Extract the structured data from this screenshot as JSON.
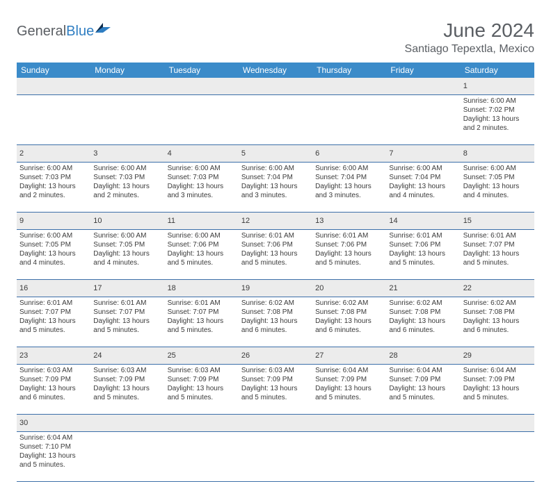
{
  "logo": {
    "general": "General",
    "blue": "Blue"
  },
  "title": "June 2024",
  "location": "Santiago Tepextla, Mexico",
  "colors": {
    "header_bg": "#3b8bc9",
    "header_text": "#ffffff",
    "stripe_bg": "#ececec",
    "rule": "#3b6ea8",
    "text": "#3a3a3a",
    "title_text": "#5a5e63",
    "logo_accent": "#2f7ec2"
  },
  "weekdays": [
    "Sunday",
    "Monday",
    "Tuesday",
    "Wednesday",
    "Thursday",
    "Friday",
    "Saturday"
  ],
  "weeks": [
    [
      null,
      null,
      null,
      null,
      null,
      null,
      {
        "n": "1",
        "sr": "Sunrise: 6:00 AM",
        "ss": "Sunset: 7:02 PM",
        "d1": "Daylight: 13 hours",
        "d2": "and 2 minutes."
      }
    ],
    [
      {
        "n": "2",
        "sr": "Sunrise: 6:00 AM",
        "ss": "Sunset: 7:03 PM",
        "d1": "Daylight: 13 hours",
        "d2": "and 2 minutes."
      },
      {
        "n": "3",
        "sr": "Sunrise: 6:00 AM",
        "ss": "Sunset: 7:03 PM",
        "d1": "Daylight: 13 hours",
        "d2": "and 2 minutes."
      },
      {
        "n": "4",
        "sr": "Sunrise: 6:00 AM",
        "ss": "Sunset: 7:03 PM",
        "d1": "Daylight: 13 hours",
        "d2": "and 3 minutes."
      },
      {
        "n": "5",
        "sr": "Sunrise: 6:00 AM",
        "ss": "Sunset: 7:04 PM",
        "d1": "Daylight: 13 hours",
        "d2": "and 3 minutes."
      },
      {
        "n": "6",
        "sr": "Sunrise: 6:00 AM",
        "ss": "Sunset: 7:04 PM",
        "d1": "Daylight: 13 hours",
        "d2": "and 3 minutes."
      },
      {
        "n": "7",
        "sr": "Sunrise: 6:00 AM",
        "ss": "Sunset: 7:04 PM",
        "d1": "Daylight: 13 hours",
        "d2": "and 4 minutes."
      },
      {
        "n": "8",
        "sr": "Sunrise: 6:00 AM",
        "ss": "Sunset: 7:05 PM",
        "d1": "Daylight: 13 hours",
        "d2": "and 4 minutes."
      }
    ],
    [
      {
        "n": "9",
        "sr": "Sunrise: 6:00 AM",
        "ss": "Sunset: 7:05 PM",
        "d1": "Daylight: 13 hours",
        "d2": "and 4 minutes."
      },
      {
        "n": "10",
        "sr": "Sunrise: 6:00 AM",
        "ss": "Sunset: 7:05 PM",
        "d1": "Daylight: 13 hours",
        "d2": "and 4 minutes."
      },
      {
        "n": "11",
        "sr": "Sunrise: 6:00 AM",
        "ss": "Sunset: 7:06 PM",
        "d1": "Daylight: 13 hours",
        "d2": "and 5 minutes."
      },
      {
        "n": "12",
        "sr": "Sunrise: 6:01 AM",
        "ss": "Sunset: 7:06 PM",
        "d1": "Daylight: 13 hours",
        "d2": "and 5 minutes."
      },
      {
        "n": "13",
        "sr": "Sunrise: 6:01 AM",
        "ss": "Sunset: 7:06 PM",
        "d1": "Daylight: 13 hours",
        "d2": "and 5 minutes."
      },
      {
        "n": "14",
        "sr": "Sunrise: 6:01 AM",
        "ss": "Sunset: 7:06 PM",
        "d1": "Daylight: 13 hours",
        "d2": "and 5 minutes."
      },
      {
        "n": "15",
        "sr": "Sunrise: 6:01 AM",
        "ss": "Sunset: 7:07 PM",
        "d1": "Daylight: 13 hours",
        "d2": "and 5 minutes."
      }
    ],
    [
      {
        "n": "16",
        "sr": "Sunrise: 6:01 AM",
        "ss": "Sunset: 7:07 PM",
        "d1": "Daylight: 13 hours",
        "d2": "and 5 minutes."
      },
      {
        "n": "17",
        "sr": "Sunrise: 6:01 AM",
        "ss": "Sunset: 7:07 PM",
        "d1": "Daylight: 13 hours",
        "d2": "and 5 minutes."
      },
      {
        "n": "18",
        "sr": "Sunrise: 6:01 AM",
        "ss": "Sunset: 7:07 PM",
        "d1": "Daylight: 13 hours",
        "d2": "and 5 minutes."
      },
      {
        "n": "19",
        "sr": "Sunrise: 6:02 AM",
        "ss": "Sunset: 7:08 PM",
        "d1": "Daylight: 13 hours",
        "d2": "and 6 minutes."
      },
      {
        "n": "20",
        "sr": "Sunrise: 6:02 AM",
        "ss": "Sunset: 7:08 PM",
        "d1": "Daylight: 13 hours",
        "d2": "and 6 minutes."
      },
      {
        "n": "21",
        "sr": "Sunrise: 6:02 AM",
        "ss": "Sunset: 7:08 PM",
        "d1": "Daylight: 13 hours",
        "d2": "and 6 minutes."
      },
      {
        "n": "22",
        "sr": "Sunrise: 6:02 AM",
        "ss": "Sunset: 7:08 PM",
        "d1": "Daylight: 13 hours",
        "d2": "and 6 minutes."
      }
    ],
    [
      {
        "n": "23",
        "sr": "Sunrise: 6:03 AM",
        "ss": "Sunset: 7:09 PM",
        "d1": "Daylight: 13 hours",
        "d2": "and 6 minutes."
      },
      {
        "n": "24",
        "sr": "Sunrise: 6:03 AM",
        "ss": "Sunset: 7:09 PM",
        "d1": "Daylight: 13 hours",
        "d2": "and 5 minutes."
      },
      {
        "n": "25",
        "sr": "Sunrise: 6:03 AM",
        "ss": "Sunset: 7:09 PM",
        "d1": "Daylight: 13 hours",
        "d2": "and 5 minutes."
      },
      {
        "n": "26",
        "sr": "Sunrise: 6:03 AM",
        "ss": "Sunset: 7:09 PM",
        "d1": "Daylight: 13 hours",
        "d2": "and 5 minutes."
      },
      {
        "n": "27",
        "sr": "Sunrise: 6:04 AM",
        "ss": "Sunset: 7:09 PM",
        "d1": "Daylight: 13 hours",
        "d2": "and 5 minutes."
      },
      {
        "n": "28",
        "sr": "Sunrise: 6:04 AM",
        "ss": "Sunset: 7:09 PM",
        "d1": "Daylight: 13 hours",
        "d2": "and 5 minutes."
      },
      {
        "n": "29",
        "sr": "Sunrise: 6:04 AM",
        "ss": "Sunset: 7:09 PM",
        "d1": "Daylight: 13 hours",
        "d2": "and 5 minutes."
      }
    ],
    [
      {
        "n": "30",
        "sr": "Sunrise: 6:04 AM",
        "ss": "Sunset: 7:10 PM",
        "d1": "Daylight: 13 hours",
        "d2": "and 5 minutes."
      },
      null,
      null,
      null,
      null,
      null,
      null
    ]
  ]
}
